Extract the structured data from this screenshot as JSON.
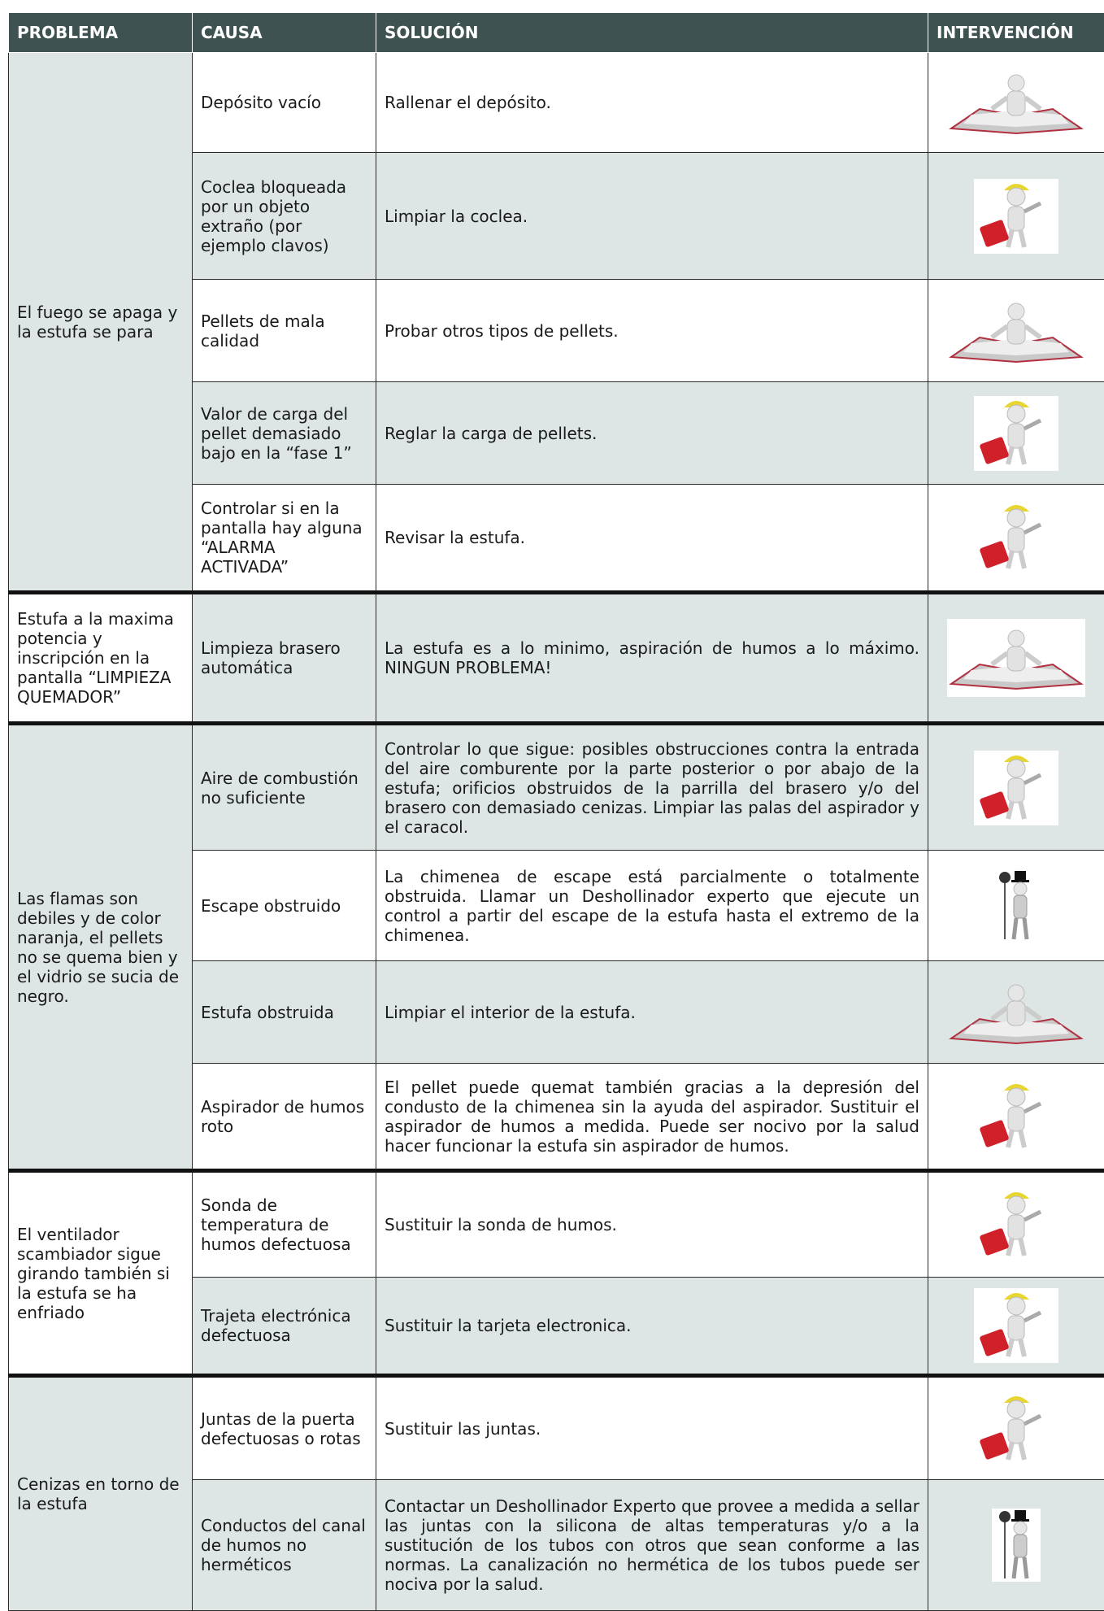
{
  "table": {
    "header": [
      "PROBLEMA",
      "CAUSA",
      "SOLUCIÓN",
      "INTERVENCIÓN"
    ],
    "groups": [
      {
        "problem": "El fuego se apaga y la estufa se para",
        "rows": [
          {
            "cause": "Depósito vacío",
            "solution": "Rallenar el depósito."
          },
          {
            "cause": "Coclea bloqueada por un objeto extraño (por ejemplo clavos)",
            "solution": "Limpiar la coclea."
          },
          {
            "cause": "Pellets de mala calidad",
            "solution": "Probar otros tipos de pellets."
          },
          {
            "cause": "Valor de carga del pellet demasiado bajo en la “fase 1”",
            "solution": "Reglar la carga de pellets."
          },
          {
            "cause": "Controlar si en la pantalla hay alguna “ALARMA ACTIVADA”",
            "solution": "Revisar la estufa."
          }
        ]
      },
      {
        "problem": "Estufa a la maxima potencia y inscripción en la pantalla “LIMPIEZA QUEMADOR”",
        "rows": [
          {
            "cause": "Limpieza brasero automática",
            "solution": "La estufa es a lo minimo, aspiración de humos a lo máximo. NINGUN PROBLEMA!"
          }
        ]
      },
      {
        "problem": "Las flamas son debiles y de color naranja, el pellets no se quema bien y el vidrio se sucia de negro.",
        "rows": [
          {
            "cause": "Aire de combustión no suficiente",
            "solution": "Controlar lo que sigue: posibles obstrucciones contra la entrada del aire comburente por la parte posterior o por abajo de la estufa; orificios obstruidos de la parrilla del brasero y/o del brasero con demasiado cenizas. Limpiar las palas del aspirador y el caracol."
          },
          {
            "cause": "Escape obstruido",
            "solution": "La chimenea de escape está parcialmente o totalmente obstruida. Llamar un Deshollinador experto que ejecute un control a partir del escape de la estufa hasta el extremo de la chimenea."
          },
          {
            "cause": "Estufa obstruida",
            "solution": "Limpiar el interior de la estufa."
          },
          {
            "cause": "Aspirador de humos roto",
            "solution": "El pellet puede quemat también gracias a la depresión del condusto de la chimenea sin la ayuda del aspirador. Sustituir el aspirador de humos a medida. Puede ser nocivo por la salud hacer funcionar la estufa sin aspirador de humos."
          }
        ]
      },
      {
        "problem": "El ventilador scambiador sigue girando también si la estufa se ha enfriado",
        "rows": [
          {
            "cause": "Sonda de temperatura de humos defectuosa",
            "solution": "Sustituir la sonda de humos."
          },
          {
            "cause": "Trajeta electrónica defectuosa",
            "solution": "Sustituir la tarjeta electronica."
          }
        ]
      },
      {
        "problem": "Cenizas en torno de la estufa",
        "rows": [
          {
            "cause": "Juntas de la puerta defectuosas o rotas",
            "solution": "Sustituir las juntas."
          },
          {
            "cause": "Conductos del canal de humos no herméticos",
            "solution": "Contactar un Deshollinador Experto que provee a medida a sellar las juntas con la silicona de altas temperaturas y/o a la sustitución de los tubos con otros que sean conforme a las normas. La canalización no hermética de los tubos puede ser nociva por la salud."
          }
        ]
      }
    ]
  }
}
